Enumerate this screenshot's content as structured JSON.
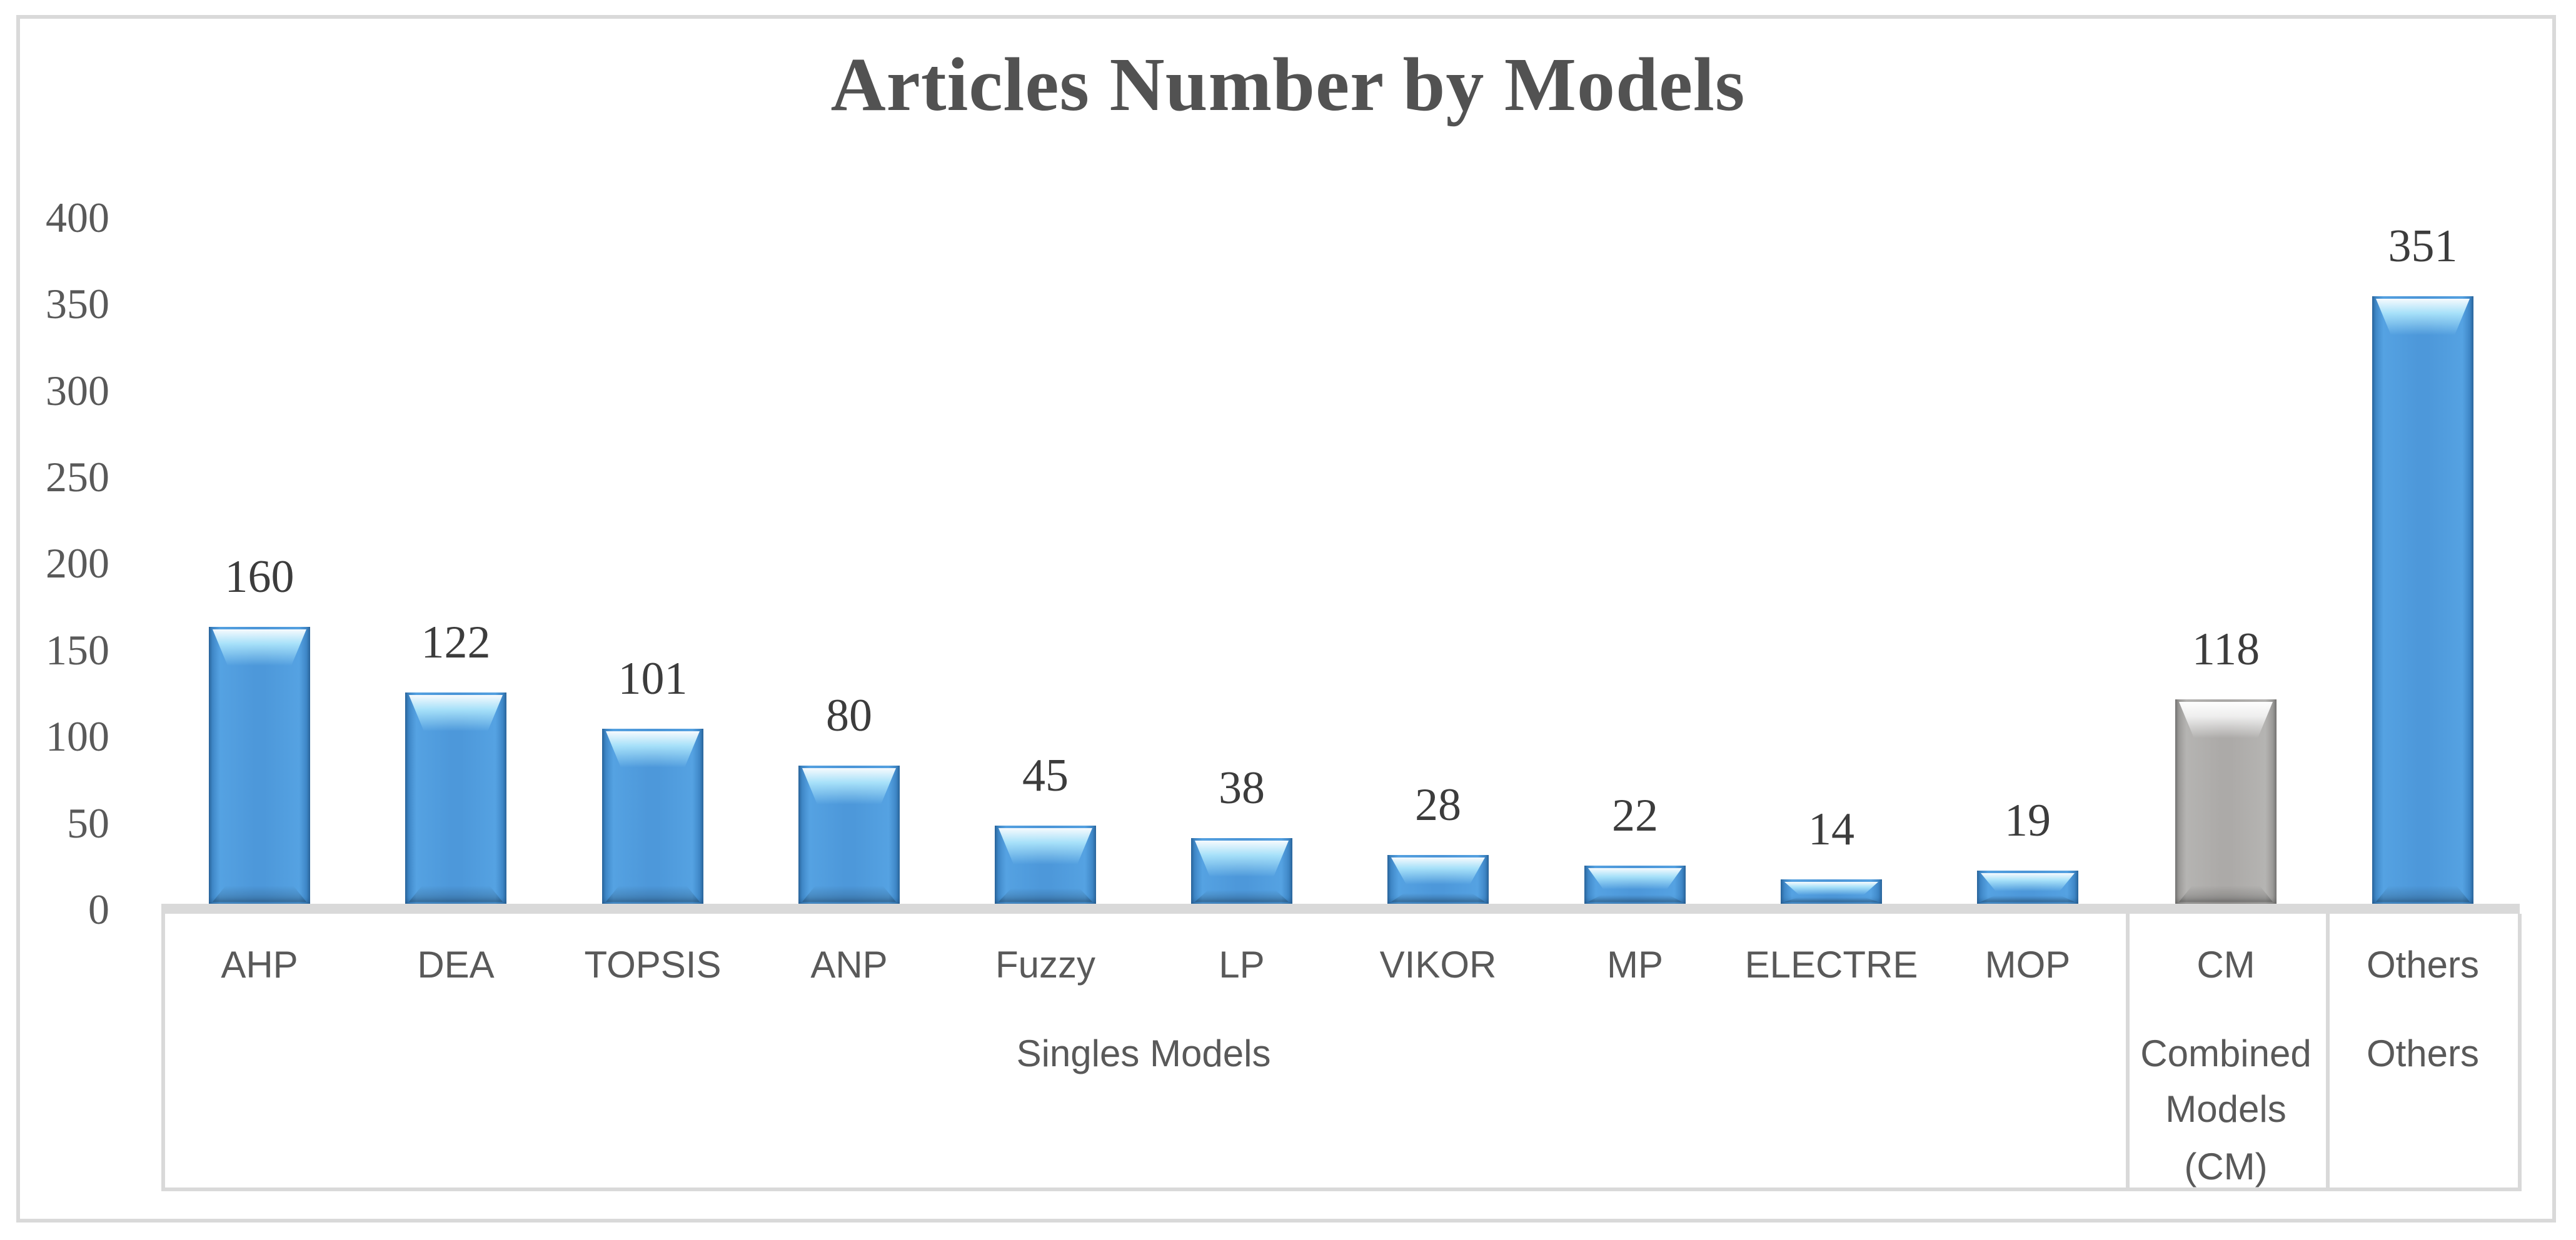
{
  "chart_data": {
    "type": "bar",
    "title": "Articles Number by Models",
    "categories": [
      "AHP",
      "DEA",
      "TOPSIS",
      "ANP",
      "Fuzzy",
      "LP",
      "VIKOR",
      "MP",
      "ELECTRE",
      "MOP",
      "CM",
      "Others"
    ],
    "values": [
      160,
      122,
      101,
      80,
      45,
      38,
      28,
      22,
      14,
      19,
      118,
      351
    ],
    "data_labels": [
      "160",
      "122",
      "101",
      "80",
      "45",
      "38",
      "28",
      "22",
      "14",
      "19",
      "118",
      "351"
    ],
    "bar_styles": [
      "blue",
      "blue",
      "blue",
      "blue",
      "blue",
      "blue",
      "blue",
      "blue",
      "blue",
      "blue",
      "gray",
      "blue"
    ],
    "xlabel": "",
    "ylabel": "",
    "ylim": [
      0,
      400
    ],
    "y_ticks": [
      "400",
      "350",
      "300",
      "250",
      "200",
      "150",
      "100",
      "50",
      "0"
    ],
    "y_tick_values": [
      400,
      350,
      300,
      250,
      200,
      150,
      100,
      50,
      0
    ],
    "grid": "off",
    "legend": "none",
    "category_groups": [
      {
        "label": "Singles Models",
        "label_lines": [
          "Singles Models"
        ],
        "category_count": 10
      },
      {
        "label": "Combined Models (CM)",
        "label_lines": [
          "Combined",
          "Models",
          "(CM)"
        ],
        "category_count": 1
      },
      {
        "label": "Others",
        "label_lines": [
          "Others"
        ],
        "category_count": 1
      }
    ],
    "colors": {
      "bar_blue": "#4d98da",
      "bar_blue_edge": "#2e6ca5",
      "bar_gray": "#acaaa8",
      "bar_gray_edge": "#7f7e7c",
      "gloss_highlight": "#cdeffd",
      "axis_line": "#d9d9d9",
      "tick_text": "#595959",
      "value_text": "#3c3c3c",
      "title_text": "#525252"
    }
  }
}
